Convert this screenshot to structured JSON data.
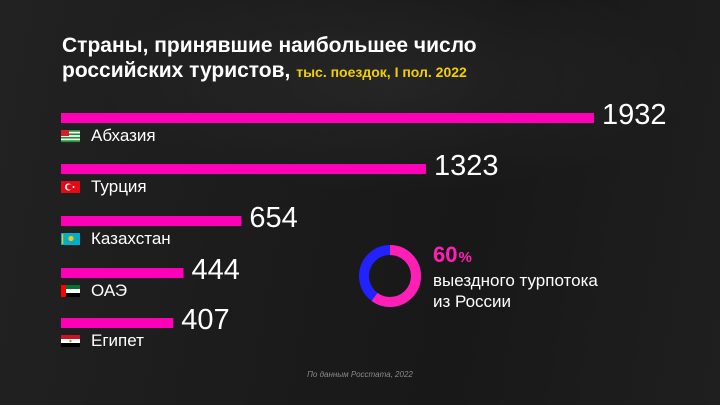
{
  "header": {
    "title_line1": "Страны, принявшие наибольшее число",
    "title_line2": "российских туристов,",
    "subtitle": "тыс. поездок, I пол. 2022"
  },
  "colors": {
    "bar": "#ff00b8",
    "donut_accent": "#ff1fb4",
    "donut_rest": "#2222ff",
    "subtitle": "#f1d000"
  },
  "chart_data": {
    "type": "bar",
    "orientation": "horizontal",
    "categories": [
      "Абхазия",
      "Турция",
      "Казахстан",
      "ОАЭ",
      "Египет"
    ],
    "values": [
      1932,
      1323,
      654,
      444,
      407
    ],
    "value_labels": [
      "1932",
      "1323",
      "654",
      "444",
      "407"
    ],
    "flags": [
      "abkhazia-flag",
      "turkey-flag",
      "kazakhstan-flag",
      "uae-flag",
      "egypt-flag"
    ],
    "xlim": [
      0,
      1932
    ]
  },
  "donut": {
    "value": 0.6,
    "percent_number": "60",
    "percent_sign": "%",
    "line1": "выездного турпотока",
    "line2": "из России"
  },
  "source": "По данным Росстата, 2022"
}
